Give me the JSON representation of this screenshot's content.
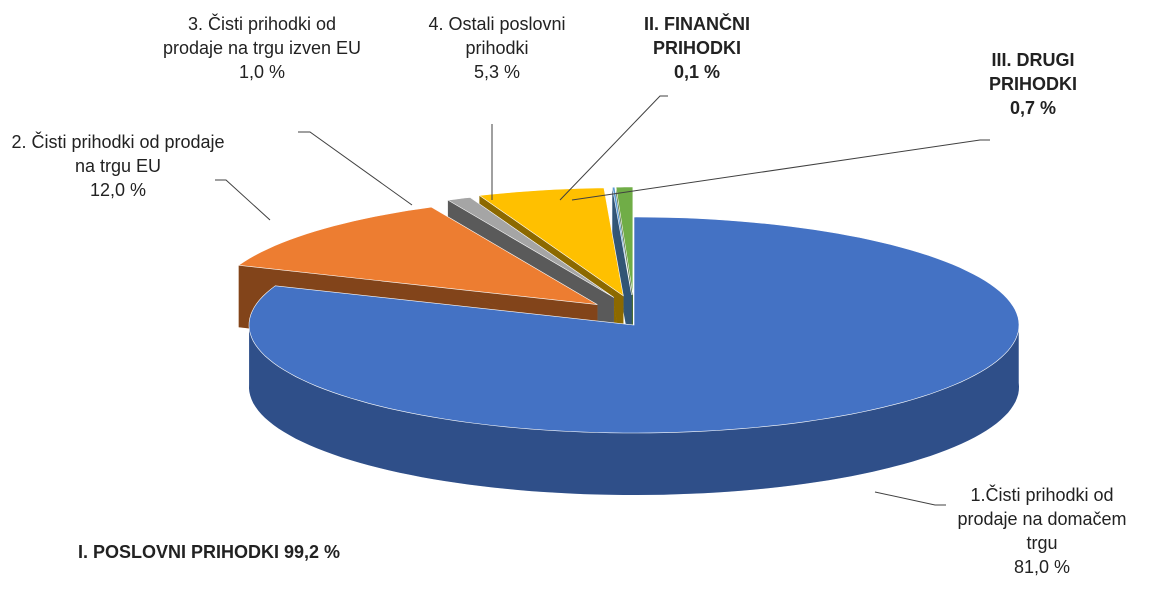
{
  "chart_data": {
    "type": "pie3d",
    "categories": [
      "1.Čisti prihodki od prodaje na domačem trgu",
      "2. Čisti prihodki od prodaje na trgu EU",
      "3. Čisti prihodki od prodaje na trgu izven EU",
      "4. Ostali poslovni prihodki",
      "II. FINANČNI PRIHODKI",
      "III. DRUGI PRIHODKI"
    ],
    "values": [
      81.0,
      12.0,
      1.0,
      5.3,
      0.1,
      0.7
    ],
    "value_labels": [
      "81,0 %",
      "12,0 %",
      "1,0 %",
      "5,3 %",
      "0,1 %",
      "0,7 %"
    ],
    "colors": [
      "#4472c4",
      "#ed7d31",
      "#a5a5a5",
      "#ffc000",
      "#5b9bd5",
      "#70ad47"
    ],
    "annotation": "I. POSLOVNI PRIHODKI 99,2 %"
  }
}
